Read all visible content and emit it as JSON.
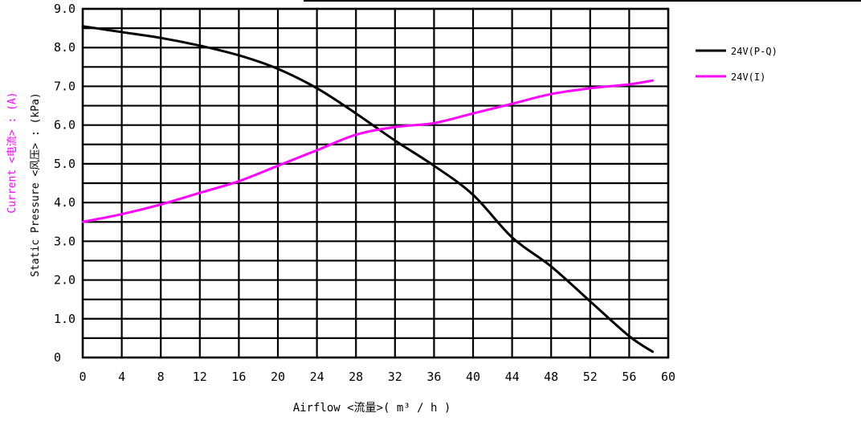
{
  "chart_data": {
    "type": "line",
    "xlabel": "Airflow  <流量>( m³ / h )",
    "ylabel_primary": "Static  Pressure  <风压> : (kPa)",
    "ylabel_secondary": "Current  <电流> : (A)",
    "xlim": [
      0,
      60
    ],
    "ylim": [
      0,
      9
    ],
    "x_ticks": [
      "0",
      "4",
      "8",
      "12",
      "16",
      "20",
      "24",
      "28",
      "32",
      "36",
      "40",
      "44",
      "48",
      "52",
      "56",
      "60"
    ],
    "x_tick_values": [
      0,
      4,
      8,
      12,
      16,
      20,
      24,
      28,
      32,
      36,
      40,
      44,
      48,
      52,
      56,
      60
    ],
    "y_ticks": [
      "0",
      "1.0",
      "2.0",
      "3.0",
      "4.0",
      "5.0",
      "6.0",
      "7.0",
      "8.0",
      "9.0"
    ],
    "y_tick_values": [
      0,
      1,
      2,
      3,
      4,
      5,
      6,
      7,
      8,
      9
    ],
    "grid": true,
    "legend_position": "right",
    "series": [
      {
        "name": "24V(P-Q)",
        "color": "#000000",
        "x": [
          0,
          4,
          8,
          12,
          16,
          20,
          24,
          28,
          32,
          36,
          40,
          44,
          48,
          52,
          56,
          58.4
        ],
        "y": [
          8.55,
          8.4,
          8.25,
          8.05,
          7.8,
          7.45,
          6.95,
          6.3,
          5.6,
          4.95,
          4.2,
          3.1,
          2.35,
          1.45,
          0.55,
          0.15
        ]
      },
      {
        "name": "24V(I)",
        "color": "#ff00ff",
        "x": [
          0,
          4,
          8,
          12,
          16,
          20,
          24,
          28,
          32,
          36,
          40,
          44,
          48,
          52,
          56,
          58.4
        ],
        "y": [
          3.5,
          3.7,
          3.95,
          4.25,
          4.55,
          4.95,
          5.35,
          5.75,
          5.95,
          6.05,
          6.3,
          6.55,
          6.8,
          6.95,
          7.05,
          7.15
        ]
      }
    ]
  }
}
